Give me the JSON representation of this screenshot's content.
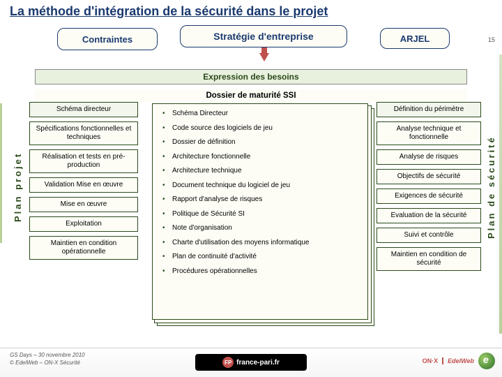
{
  "slide": {
    "title": "La méthode d'intégration de la sécurité dans le projet",
    "number": "15"
  },
  "top": {
    "contraintes": "Contraintes",
    "strategie": "Stratégie d'entreprise",
    "arjel": "ARJEL"
  },
  "bars": {
    "besoins": "Expression des besoins",
    "dossier": "Dossier de maturité SSI"
  },
  "labels": {
    "left_vertical": "Plan projet",
    "right_vertical": "Plan de sécurité"
  },
  "left_col": [
    "Schéma directeur",
    "Spécifications fonctionnelles et techniques",
    "Réalisation et tests en pré-production",
    "Validation Mise en œuvre",
    "Mise en œuvre",
    "Exploitation",
    "Maintien en condition opérationnelle"
  ],
  "center_items": [
    "Schéma Directeur",
    "Code source des logiciels de jeu",
    "Dossier de définition",
    "Architecture fonctionnelle",
    "Architecture technique",
    "Document technique du logiciel de jeu",
    "Rapport d'analyse de risques",
    "Politique de Sécurité SI",
    "Note d'organisation",
    "Charte d'utilisation des moyens informatique",
    "Plan de continuité d'activité",
    "Procédures opérationnelles"
  ],
  "right_col": [
    "Définition du périmètre",
    "Analyse technique et fonctionnelle",
    "Analyse de risques",
    "Objectifs de sécurité",
    "Exigences de sécurité",
    "Evaluation de la sécurité",
    "Suivi et contrôle",
    "Maintien en condition de sécurité"
  ],
  "footer": {
    "date": "GS Days – 30 novembre 2010",
    "copyright": "© EdelWeb – ON-X Sécurité",
    "center_brand": "france-pari.fr",
    "onx": "ON·X",
    "edelweb": "EdelWeb"
  },
  "colors": {
    "title": "#1a3a6e",
    "green_dark": "#2a4a1a",
    "green_fill": "#e8f0de",
    "cream": "#fdfdf6",
    "accent_red": "#c0504d"
  }
}
